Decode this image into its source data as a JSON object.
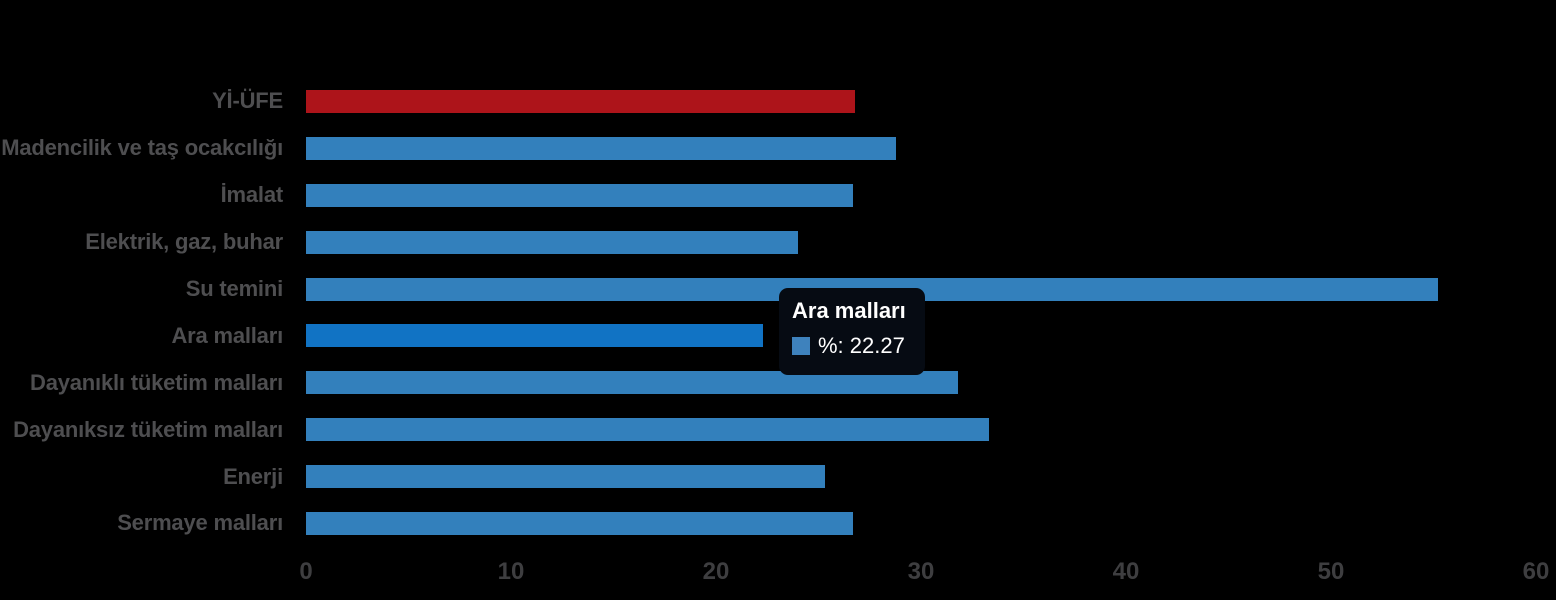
{
  "chart_data": {
    "type": "bar",
    "orientation": "horizontal",
    "title": "",
    "categories": [
      "Yİ-ÜFE",
      "Madencilik ve taş ocakcılığı",
      "İmalat",
      "Elektrik, gaz, buhar",
      "Su temini",
      "Ara malları",
      "Dayanıklı tüketim malları",
      "Dayanıksız tüketim malları",
      "Enerji",
      "Sermaye malları"
    ],
    "series": [
      {
        "name": "%",
        "values": [
          26.8,
          28.8,
          26.7,
          24.0,
          55.2,
          22.27,
          31.8,
          33.3,
          25.3,
          26.7
        ]
      }
    ],
    "xlim": [
      0,
      60
    ],
    "x_ticks": [
      "0",
      "10",
      "20",
      "30",
      "40",
      "50",
      "60"
    ],
    "grid": false,
    "legend": false,
    "highlighted_category": "Ara malları",
    "bar_colors": {
      "yi_ufe": "#ad141a",
      "default": "#3380bc",
      "highlight": "#1173c4"
    }
  },
  "tooltip": {
    "title": "Ara malları",
    "series_label": "%",
    "value": "22.27",
    "text": "%: 22.27",
    "swatch_color": "#3e82bd"
  },
  "colors": {
    "background": "#000000",
    "category_label": "#4e4e50",
    "tick_label": "#3e3e40",
    "tooltip_bg": "#060b13",
    "tooltip_text": "#ffffff"
  }
}
